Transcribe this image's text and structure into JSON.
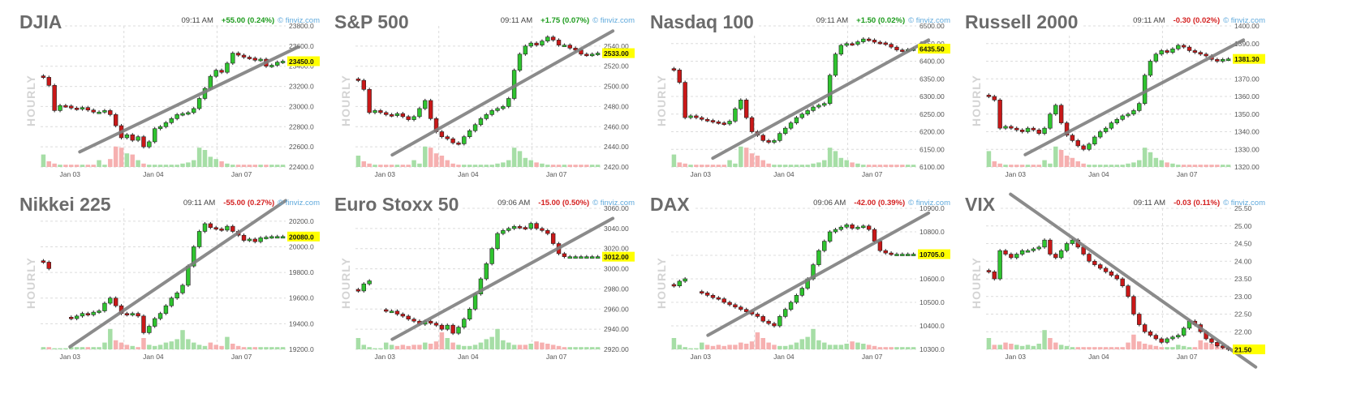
{
  "chart_data": [
    {
      "type": "line",
      "title": "DJIA",
      "time": "09:11 AM",
      "change": "+55.00 (0.24%)",
      "direction": "up",
      "source": "finviz.com",
      "side_label": "HOURLY",
      "ylim": [
        22400,
        23800
      ],
      "yticks": [
        "23800.0",
        "23600.0",
        "23400.0",
        "23200.0",
        "23000.0",
        "22800.0",
        "22600.0",
        "22400.0"
      ],
      "xticks": [
        "Jan 03",
        "Jan 04",
        "Jan 07"
      ],
      "last": "23450.0",
      "y": [
        23290,
        23210,
        22960,
        23010,
        23005,
        22985,
        22975,
        22990,
        22965,
        22945,
        22945,
        22960,
        22920,
        22810,
        22690,
        22720,
        22665,
        22700,
        22600,
        22650,
        22780,
        22800,
        22840,
        22880,
        22920,
        22930,
        22940,
        22980,
        23080,
        23180,
        23300,
        23360,
        23340,
        23430,
        23530,
        23510,
        23490,
        23480,
        23460,
        23470,
        23400,
        23410,
        23440,
        23450
      ],
      "vol": [
        0.55,
        0.25,
        0.15,
        0.1,
        0.1,
        0.1,
        0.1,
        0.1,
        0.1,
        0.1,
        0.3,
        0.1,
        0.35,
        0.9,
        0.85,
        0.6,
        0.55,
        0.3,
        0.15,
        0.1,
        0.1,
        0.1,
        0.1,
        0.1,
        0.1,
        0.15,
        0.2,
        0.3,
        0.85,
        0.75,
        0.45,
        0.35,
        0.25,
        0.15,
        0.1,
        0.1,
        0.1,
        0.1,
        0.1,
        0.1,
        0.1,
        0.1,
        0.1,
        0.1
      ],
      "trend": [
        [
          16,
          22550
        ],
        [
          105,
          23590
        ]
      ]
    },
    {
      "type": "line",
      "title": "S&P 500",
      "time": "09:11 AM",
      "change": "+1.75 (0.07%)",
      "direction": "up",
      "source": "finviz.com",
      "side_label": "HOURLY",
      "ylim": [
        2420,
        2560
      ],
      "yticks": [
        "2540.00",
        "2520.00",
        "2500.00",
        "2480.00",
        "2460.00",
        "2440.00",
        "2420.00"
      ],
      "xticks": [
        "Jan 03",
        "Jan 04",
        "Jan 07"
      ],
      "last": "2533.00",
      "y": [
        2506,
        2497,
        2474,
        2476,
        2474,
        2472,
        2471,
        2473,
        2470,
        2467,
        2470,
        2478,
        2486,
        2468,
        2455,
        2450,
        2448,
        2444,
        2443,
        2450,
        2456,
        2462,
        2468,
        2472,
        2476,
        2478,
        2480,
        2488,
        2516,
        2532,
        2540,
        2543,
        2541,
        2545,
        2549,
        2546,
        2541,
        2541,
        2538,
        2536,
        2532,
        2531,
        2532,
        2533
      ],
      "vol": [
        0.5,
        0.25,
        0.15,
        0.1,
        0.1,
        0.1,
        0.1,
        0.1,
        0.1,
        0.1,
        0.3,
        0.15,
        0.9,
        0.85,
        0.6,
        0.5,
        0.3,
        0.15,
        0.1,
        0.1,
        0.1,
        0.1,
        0.1,
        0.1,
        0.1,
        0.15,
        0.2,
        0.3,
        0.85,
        0.7,
        0.4,
        0.3,
        0.2,
        0.15,
        0.1,
        0.1,
        0.1,
        0.1,
        0.1,
        0.1,
        0.1,
        0.1,
        0.1,
        0.1
      ],
      "trend": [
        [
          15,
          2432
        ],
        [
          105,
          2555
        ]
      ]
    },
    {
      "type": "line",
      "title": "Nasdaq 100",
      "time": "09:11 AM",
      "change": "+1.50 (0.02%)",
      "direction": "up",
      "source": "finviz.com",
      "side_label": "HOURLY",
      "ylim": [
        6100,
        6500
      ],
      "yticks": [
        "6500.00",
        "6450.00",
        "6400.00",
        "6350.00",
        "6300.00",
        "6250.00",
        "6200.00",
        "6150.00",
        "6100.00"
      ],
      "xticks": [
        "Jan 03",
        "Jan 04",
        "Jan 07"
      ],
      "last": "6435.50",
      "y": [
        6375,
        6340,
        6240,
        6245,
        6240,
        6235,
        6232,
        6228,
        6225,
        6222,
        6230,
        6265,
        6290,
        6240,
        6200,
        6190,
        6175,
        6170,
        6175,
        6195,
        6210,
        6225,
        6240,
        6250,
        6260,
        6270,
        6275,
        6280,
        6360,
        6420,
        6445,
        6450,
        6448,
        6455,
        6463,
        6460,
        6454,
        6452,
        6448,
        6440,
        6432,
        6430,
        6433,
        6435
      ],
      "vol": [
        0.55,
        0.2,
        0.15,
        0.1,
        0.1,
        0.1,
        0.1,
        0.1,
        0.1,
        0.1,
        0.3,
        0.15,
        0.9,
        0.85,
        0.6,
        0.5,
        0.3,
        0.15,
        0.1,
        0.1,
        0.1,
        0.1,
        0.1,
        0.1,
        0.1,
        0.15,
        0.2,
        0.3,
        0.85,
        0.7,
        0.4,
        0.3,
        0.2,
        0.15,
        0.1,
        0.1,
        0.1,
        0.1,
        0.1,
        0.1,
        0.1,
        0.1,
        0.1,
        0.1
      ],
      "trend": [
        [
          17,
          6125
        ],
        [
          105,
          6460
        ]
      ]
    },
    {
      "type": "line",
      "title": "Russell 2000",
      "time": "09:11 AM",
      "change": "-0.30 (0.02%)",
      "direction": "down",
      "source": "finviz.com",
      "side_label": "HOURLY",
      "ylim": [
        1320,
        1400
      ],
      "yticks": [
        "1400.00",
        "1390.00",
        "1380.00",
        "1370.00",
        "1360.00",
        "1350.00",
        "1340.00",
        "1330.00",
        "1320.00"
      ],
      "xticks": [
        "Jan 03",
        "Jan 04",
        "Jan 07"
      ],
      "last": "1381.30",
      "y": [
        1360,
        1358,
        1342,
        1343,
        1342,
        1341,
        1340,
        1342,
        1341,
        1339,
        1342,
        1350,
        1355,
        1345,
        1338,
        1335,
        1332,
        1330,
        1333,
        1337,
        1340,
        1342,
        1345,
        1347,
        1349,
        1350,
        1352,
        1356,
        1372,
        1380,
        1384,
        1386,
        1385,
        1387,
        1389,
        1388,
        1386,
        1385,
        1384,
        1383,
        1381,
        1380,
        1381,
        1381.3
      ],
      "vol": [
        0.7,
        0.25,
        0.15,
        0.1,
        0.1,
        0.1,
        0.1,
        0.1,
        0.1,
        0.1,
        0.3,
        0.15,
        0.9,
        0.75,
        0.5,
        0.4,
        0.25,
        0.15,
        0.1,
        0.1,
        0.1,
        0.1,
        0.1,
        0.1,
        0.1,
        0.15,
        0.2,
        0.3,
        0.85,
        0.65,
        0.4,
        0.3,
        0.2,
        0.15,
        0.1,
        0.1,
        0.1,
        0.1,
        0.1,
        0.1,
        0.1,
        0.1,
        0.1,
        0.1
      ],
      "trend": [
        [
          16,
          1327
        ],
        [
          105,
          1392
        ]
      ]
    },
    {
      "type": "line",
      "title": "Nikkei 225",
      "time": "09:11 AM",
      "change": "-55.00 (0.27%)",
      "direction": "down",
      "source": "finviz.com",
      "side_label": "HOURLY",
      "ylim": [
        19200,
        20300
      ],
      "yticks": [
        "20200.0",
        "20000.0",
        "19800.0",
        "19600.0",
        "19400.0",
        "19200.0"
      ],
      "xticks": [
        "Jan 03",
        "Jan 04",
        "Jan 07"
      ],
      "last": "20080.0",
      "y": [
        19880,
        19830,
        null,
        null,
        null,
        19440,
        19460,
        19480,
        19470,
        19490,
        19500,
        19560,
        19600,
        19540,
        19480,
        19470,
        19480,
        19460,
        19330,
        19380,
        19440,
        19480,
        19540,
        19600,
        19640,
        19700,
        19850,
        20000,
        20120,
        20180,
        20150,
        20140,
        20130,
        20160,
        20120,
        20090,
        20050,
        20060,
        20040,
        20070,
        20075,
        20080,
        20080,
        20080
      ],
      "vol": [
        0.1,
        0.1,
        0.05,
        0.05,
        0.05,
        0.1,
        0.1,
        0.1,
        0.1,
        0.1,
        0.1,
        0.3,
        0.9,
        0.4,
        0.3,
        0.2,
        0.15,
        0.1,
        0.5,
        0.2,
        0.15,
        0.2,
        0.3,
        0.35,
        0.45,
        0.85,
        0.45,
        0.3,
        0.2,
        0.15,
        0.3,
        0.2,
        0.15,
        0.55,
        0.25,
        0.15,
        0.1,
        0.1,
        0.1,
        0.1,
        0.1,
        0.1,
        0.1,
        0.1
      ],
      "trend": [
        [
          12,
          19220
        ],
        [
          100,
          20360
        ]
      ]
    },
    {
      "type": "line",
      "title": "Euro Stoxx 50",
      "time": "09:06 AM",
      "change": "-15.00 (0.50%)",
      "direction": "down",
      "source": "finviz.com",
      "side_label": "HOURLY",
      "ylim": [
        2920,
        3060
      ],
      "yticks": [
        "3060.00",
        "3040.00",
        "3020.00",
        "3000.00",
        "2980.00",
        "2960.00",
        "2940.00",
        "2920.00"
      ],
      "xticks": [
        "Jan 03",
        "Jan 04",
        "Jan 07"
      ],
      "last": "3012.00",
      "y": [
        2978,
        2985,
        2988,
        null,
        null,
        2958,
        2958,
        2955,
        2953,
        2950,
        2948,
        2945,
        2948,
        2946,
        2944,
        2940,
        2944,
        2936,
        2942,
        2950,
        2960,
        2975,
        2990,
        3005,
        3020,
        3035,
        3038,
        3040,
        3042,
        3041,
        3040,
        3045,
        3040,
        3038,
        3035,
        3025,
        3015,
        3012,
        3012,
        3012,
        3012,
        3012,
        3012,
        3012
      ],
      "vol": [
        0.5,
        0.2,
        0.1,
        0.05,
        0.05,
        0.3,
        0.2,
        0.15,
        0.2,
        0.15,
        0.2,
        0.2,
        0.3,
        0.25,
        0.35,
        0.75,
        0.5,
        0.3,
        0.2,
        0.15,
        0.15,
        0.2,
        0.3,
        0.45,
        0.55,
        0.9,
        0.4,
        0.3,
        0.2,
        0.2,
        0.2,
        0.25,
        0.35,
        0.3,
        0.25,
        0.2,
        0.15,
        0.1,
        0.1,
        0.1,
        0.1,
        0.1,
        0.1,
        0.1
      ],
      "trend": [
        [
          15,
          2930
        ],
        [
          105,
          3050
        ]
      ]
    },
    {
      "type": "line",
      "title": "DAX",
      "time": "09:06 AM",
      "change": "-42.00 (0.39%)",
      "direction": "down",
      "source": "finviz.com",
      "side_label": "HOURLY",
      "ylim": [
        10300,
        10900
      ],
      "yticks": [
        "10900.0",
        "10800.0",
        "10700.0",
        "10600.0",
        "10500.0",
        "10400.0",
        "10300.0"
      ],
      "xticks": [
        "Jan 03",
        "Jan 04",
        "Jan 07"
      ],
      "last": "10705.0",
      "y": [
        10570,
        10590,
        10600,
        null,
        null,
        10540,
        10530,
        10520,
        10515,
        10500,
        10490,
        10480,
        10470,
        10460,
        10450,
        10440,
        10420,
        10410,
        10400,
        10440,
        10470,
        10500,
        10530,
        10560,
        10600,
        10660,
        10720,
        10760,
        10800,
        10810,
        10820,
        10830,
        10815,
        10820,
        10825,
        10810,
        10760,
        10720,
        10710,
        10705,
        10705,
        10705,
        10705,
        10705
      ],
      "vol": [
        0.5,
        0.2,
        0.1,
        0.05,
        0.05,
        0.3,
        0.2,
        0.15,
        0.2,
        0.15,
        0.2,
        0.2,
        0.3,
        0.25,
        0.35,
        0.75,
        0.5,
        0.3,
        0.2,
        0.15,
        0.15,
        0.2,
        0.3,
        0.45,
        0.55,
        0.9,
        0.4,
        0.3,
        0.2,
        0.2,
        0.2,
        0.25,
        0.35,
        0.3,
        0.25,
        0.2,
        0.15,
        0.1,
        0.1,
        0.1,
        0.1,
        0.1,
        0.1,
        0.1
      ],
      "trend": [
        [
          15,
          10360
        ],
        [
          105,
          10880
        ]
      ]
    },
    {
      "type": "line",
      "title": "VIX",
      "time": "09:11 AM",
      "change": "-0.03 (0.11%)",
      "direction": "down",
      "source": "finviz.com",
      "side_label": "HOURLY",
      "ylim": [
        21.5,
        25.5
      ],
      "yticks": [
        "25.50",
        "25.00",
        "24.50",
        "24.00",
        "23.50",
        "23.00",
        "22.50",
        "22.00",
        "21.50"
      ],
      "xticks": [
        "Jan 03",
        "Jan 04",
        "Jan 07"
      ],
      "last": "21.50",
      "y": [
        23.7,
        23.5,
        24.3,
        24.2,
        24.1,
        24.2,
        24.3,
        24.3,
        24.35,
        24.4,
        24.6,
        24.2,
        24.1,
        24.3,
        24.5,
        24.6,
        24.4,
        24.2,
        24.0,
        23.9,
        23.8,
        23.7,
        23.6,
        23.5,
        23.3,
        23.0,
        22.5,
        22.2,
        22.0,
        21.9,
        21.8,
        21.7,
        21.8,
        21.85,
        21.9,
        22.1,
        22.3,
        22.2,
        22.0,
        21.8,
        21.7,
        21.6,
        21.55,
        21.5
      ],
      "vol": [
        0.5,
        0.2,
        0.2,
        0.3,
        0.25,
        0.2,
        0.15,
        0.2,
        0.15,
        0.25,
        0.85,
        0.5,
        0.3,
        0.2,
        0.15,
        0.1,
        0.1,
        0.1,
        0.1,
        0.1,
        0.1,
        0.1,
        0.1,
        0.1,
        0.1,
        0.3,
        0.65,
        0.35,
        0.25,
        0.2,
        0.15,
        0.1,
        0.1,
        0.1,
        0.2,
        0.15,
        0.1,
        0.1,
        0.4,
        0.3,
        0.25,
        0.2,
        0.15,
        0.1
      ],
      "trend": [
        [
          10,
          25.9
        ],
        [
          110,
          21.0
        ]
      ]
    }
  ],
  "colors": {
    "up": "#2fc42f",
    "down": "#c91818",
    "vol_up": "#a6dea6",
    "vol_down": "#f6b0b0",
    "trend": "#7f7f7f",
    "last_bg": "#ffff00",
    "grid": "#dcdcdc"
  }
}
